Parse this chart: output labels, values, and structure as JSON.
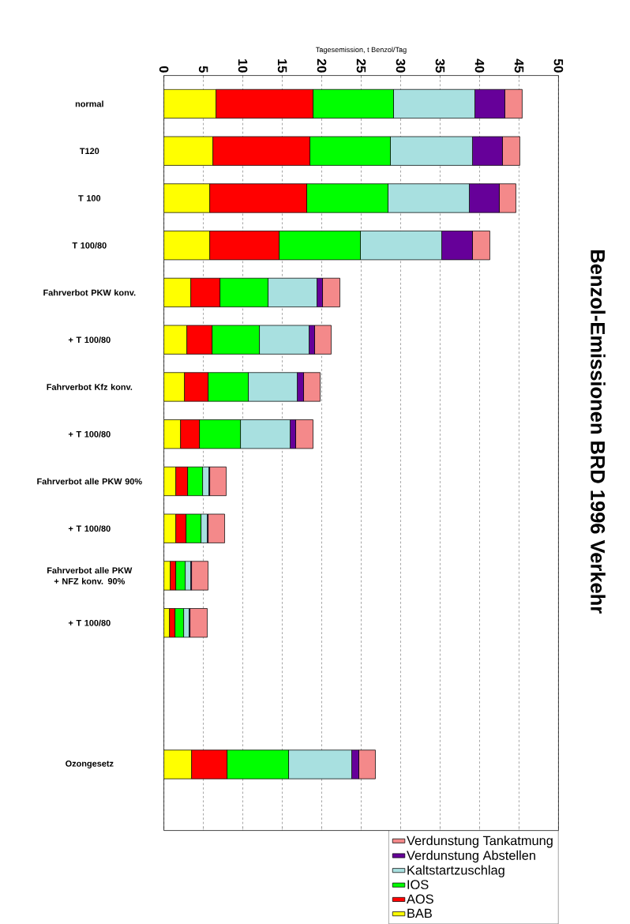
{
  "chart_data": {
    "type": "bar",
    "orientation": "horizontal",
    "stacked": true,
    "title": "Benzol-Emissionen BRD 1996 Verkehr",
    "xlabel": "Tagesemission, t Benzol/Tag",
    "categories": [
      "normal",
      "T120",
      "T 100",
      "T 100/80",
      "Fahrverbot PKW konv.",
      "+ T 100/80",
      "Fahrverbot Kfz konv.",
      "+ T 100/80",
      "Fahrverbot alle PKW 90%",
      "+ T 100/80",
      "Fahrverbot alle PKW + NFZ konv. 90%",
      "+ T 100/80",
      null,
      null,
      "Ozongesetz"
    ],
    "series": [
      {
        "name": "BAB",
        "color": "#ffff00",
        "values": [
          6.6,
          6.2,
          5.8,
          5.8,
          3.4,
          2.9,
          2.6,
          2.1,
          1.5,
          1.5,
          0.8,
          0.7,
          null,
          null,
          3.5
        ]
      },
      {
        "name": "AOS",
        "color": "#ff0000",
        "values": [
          12.3,
          12.3,
          12.3,
          8.8,
          3.7,
          3.2,
          3.0,
          2.4,
          1.5,
          1.3,
          0.7,
          0.7,
          null,
          null,
          4.5
        ]
      },
      {
        "name": "IOS",
        "color": "#00ff00",
        "values": [
          10.2,
          10.2,
          10.3,
          10.3,
          6.1,
          6.0,
          5.1,
          5.2,
          1.9,
          1.9,
          1.2,
          1.1,
          null,
          null,
          7.8
        ]
      },
      {
        "name": "Kaltstartzuschlag",
        "color": "#a8e0e0",
        "values": [
          10.3,
          10.4,
          10.3,
          10.3,
          6.2,
          6.3,
          6.2,
          6.3,
          0.8,
          0.8,
          0.7,
          0.7,
          null,
          null,
          8.0
        ]
      },
      {
        "name": "Verdunstung Abstellen",
        "color": "#660099",
        "values": [
          3.8,
          3.8,
          3.8,
          3.9,
          0.7,
          0.7,
          0.8,
          0.7,
          0.1,
          0.1,
          0.1,
          0.1,
          null,
          null,
          0.9
        ]
      },
      {
        "name": "Verdunstung Tankatmung",
        "color": "#f4898a",
        "values": [
          2.2,
          2.2,
          2.1,
          2.2,
          2.2,
          2.1,
          2.1,
          2.2,
          2.1,
          2.1,
          2.1,
          2.2,
          null,
          null,
          2.1
        ]
      }
    ],
    "xlim": [
      0,
      50
    ],
    "xticks": [
      0,
      5,
      10,
      15,
      20,
      25,
      30,
      35,
      40,
      45,
      50
    ],
    "grid": "x",
    "legend": "bottom right"
  }
}
